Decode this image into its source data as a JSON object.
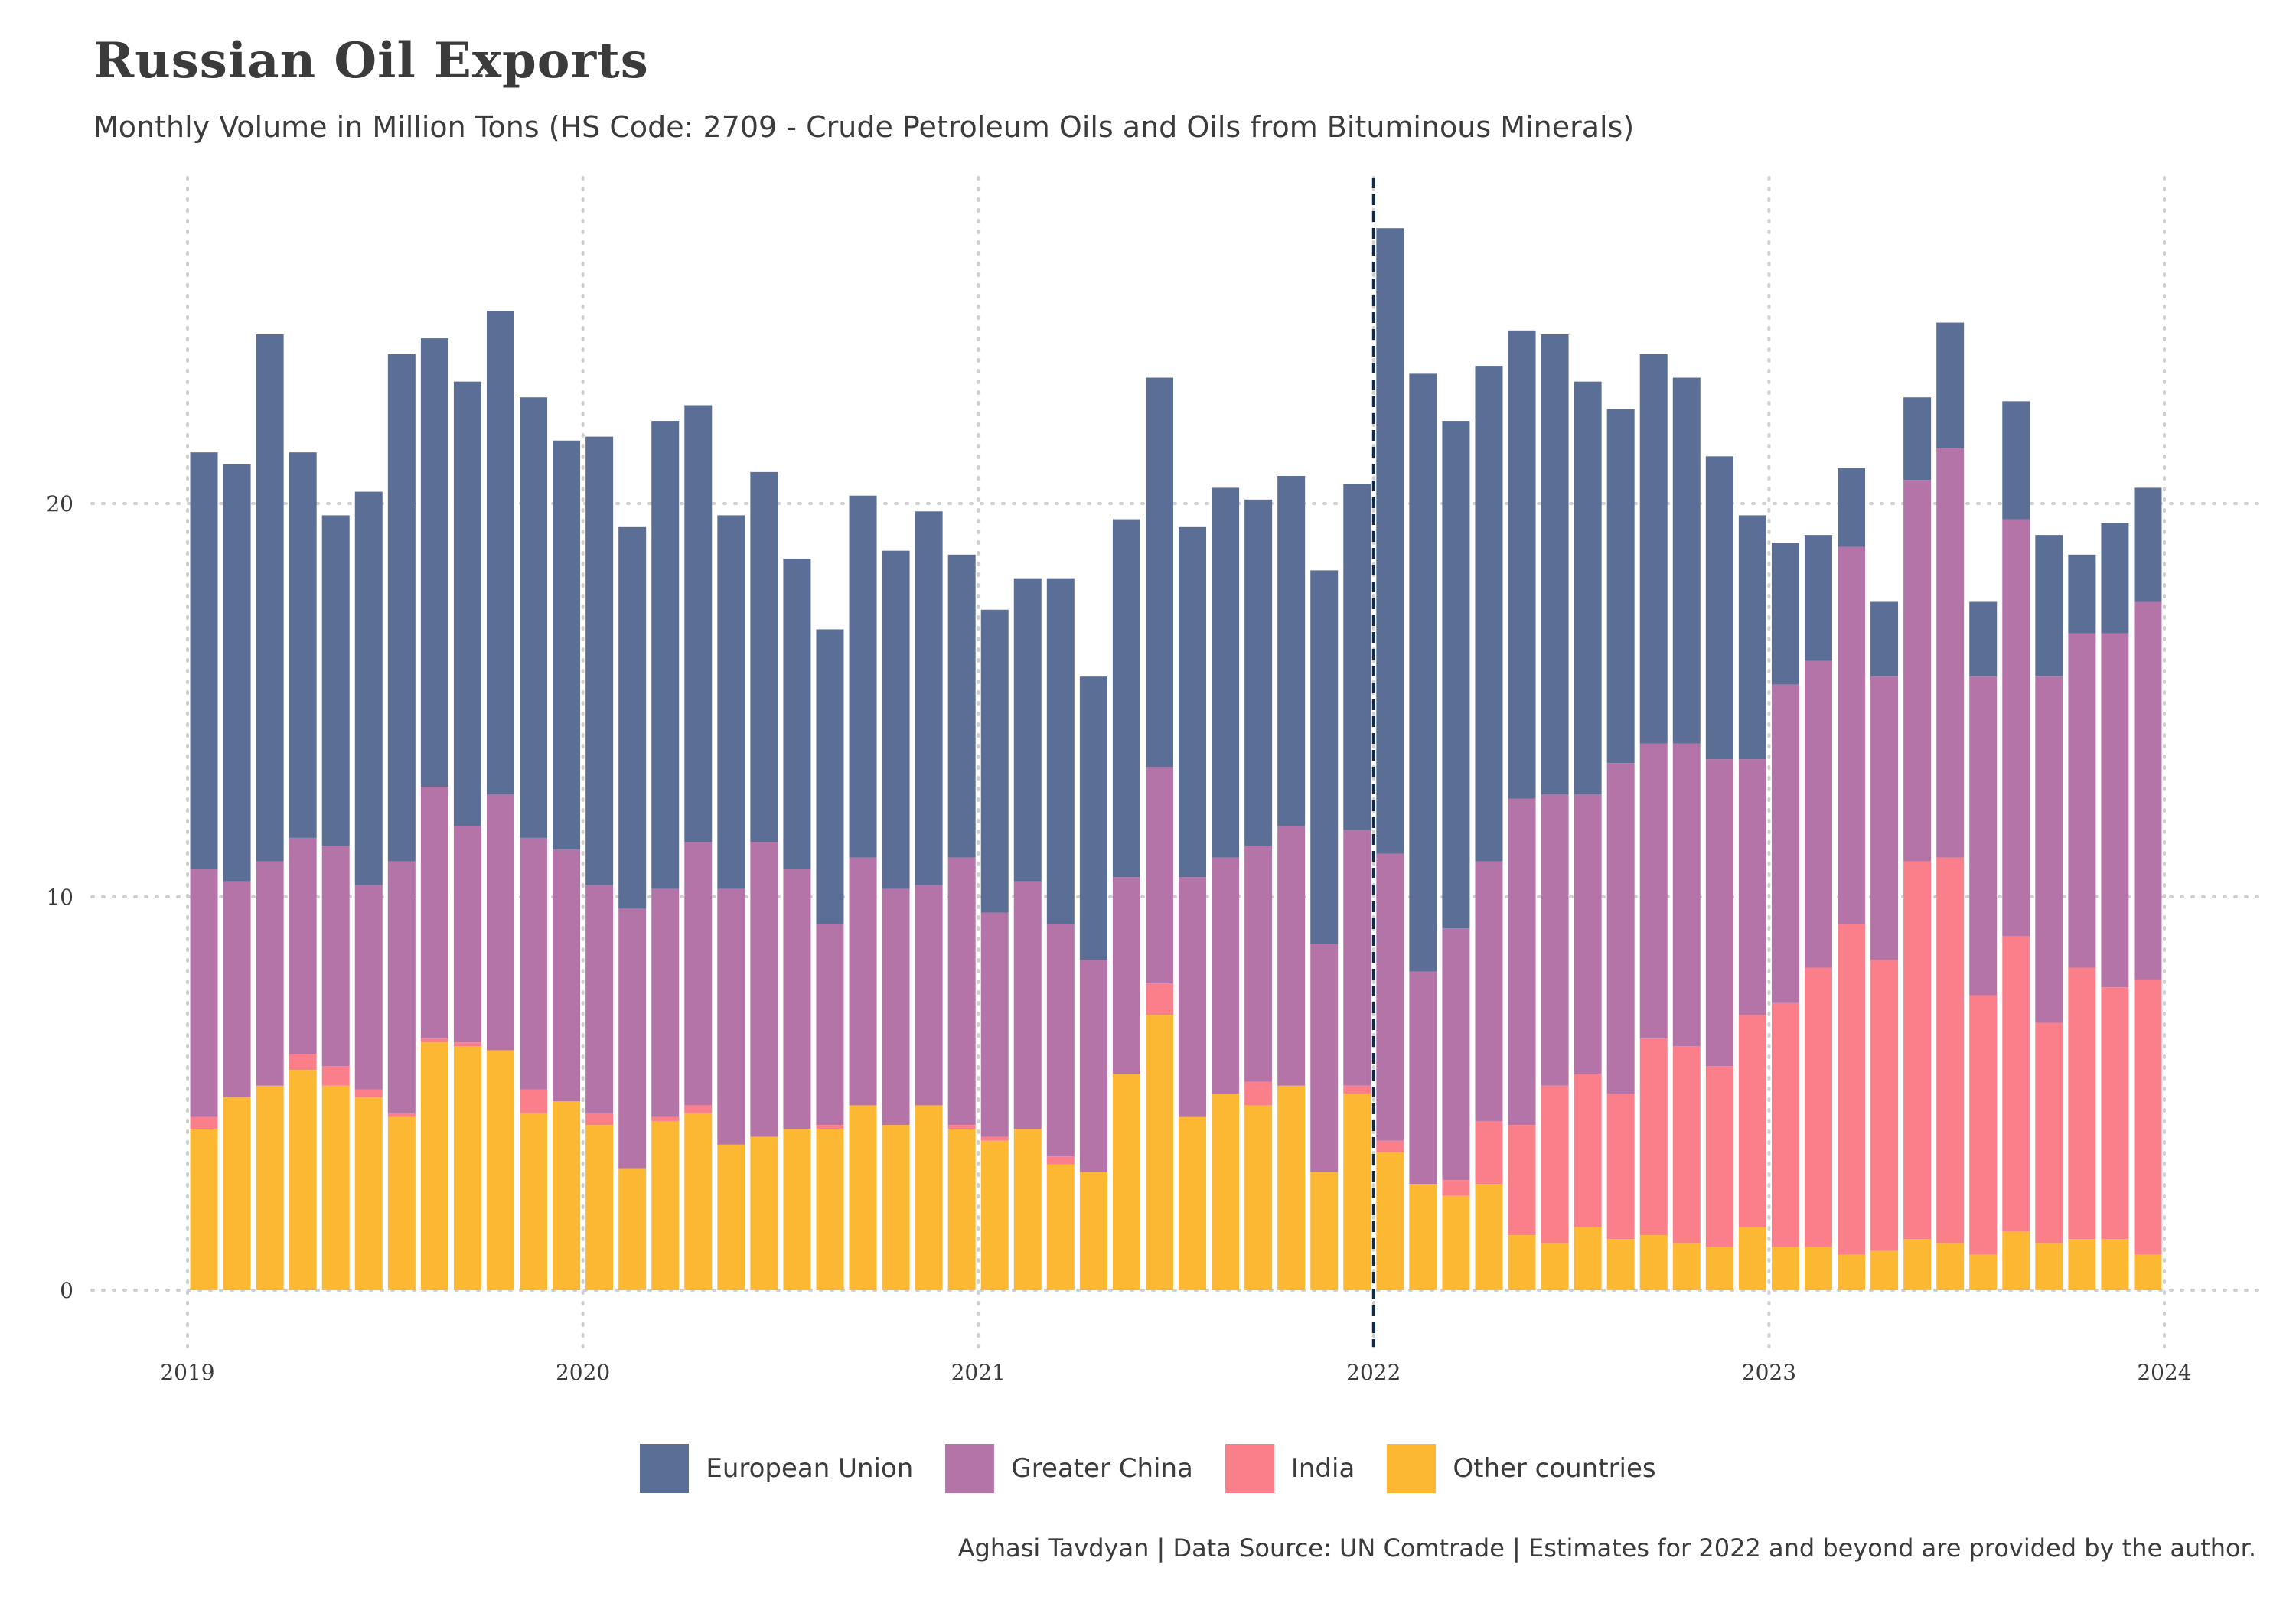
{
  "chart_data": {
    "type": "bar",
    "stacked": true,
    "title": "Russian Oil Exports",
    "subtitle": "Monthly Volume in Million Tons (HS Code: 2709 - Crude Petroleum Oils and Oils from Bituminous Minerals)",
    "caption": "Aghasi Tavdyan | Data Source: UN Comtrade | Estimates for 2022 and beyond are provided by the author.",
    "xlabel": "",
    "ylabel": "",
    "x_start": "2019-01",
    "x_ticks": [
      "2019",
      "2020",
      "2021",
      "2022",
      "2023",
      "2024"
    ],
    "y_ticks": [
      "0",
      "10",
      "20"
    ],
    "ylim": [
      0,
      28
    ],
    "reference_line": "2022",
    "legend_position": "bottom",
    "series": [
      {
        "name": "Other countries",
        "color": "#FDB833",
        "values": [
          4.1,
          4.9,
          5.2,
          5.6,
          5.2,
          4.9,
          4.4,
          6.3,
          6.2,
          6.1,
          4.5,
          4.8,
          4.2,
          3.1,
          4.3,
          4.5,
          3.7,
          3.9,
          4.1,
          4.1,
          4.7,
          4.2,
          4.7,
          4.1,
          3.8,
          4.1,
          3.2,
          3.0,
          5.5,
          7.0,
          4.4,
          5.0,
          4.7,
          5.2,
          3.0,
          5.0,
          3.5,
          2.7,
          2.4,
          2.7,
          1.4,
          1.2,
          1.6,
          1.3,
          1.4,
          1.2,
          1.1,
          1.6,
          1.1,
          1.1,
          0.9,
          1.0,
          1.3,
          1.2,
          0.9,
          1.5,
          1.2,
          1.3,
          1.3,
          0.9
        ]
      },
      {
        "name": "India",
        "color": "#FB7F8B",
        "values": [
          0.3,
          0.0,
          0.0,
          0.4,
          0.5,
          0.2,
          0.1,
          0.1,
          0.1,
          0.0,
          0.6,
          0.0,
          0.3,
          0.0,
          0.1,
          0.2,
          0.0,
          0.0,
          0.0,
          0.1,
          0.0,
          0.0,
          0.0,
          0.1,
          0.1,
          0.0,
          0.2,
          0.0,
          0.0,
          0.8,
          0.0,
          0.0,
          0.6,
          0.0,
          0.0,
          0.2,
          0.3,
          0.0,
          0.4,
          1.6,
          2.8,
          4.0,
          3.9,
          3.7,
          5.0,
          5.0,
          4.6,
          5.4,
          6.2,
          7.1,
          8.4,
          7.4,
          9.6,
          9.8,
          6.6,
          7.5,
          5.6,
          6.9,
          6.4,
          7.0
        ]
      },
      {
        "name": "Greater China",
        "color": "#B574A8",
        "values": [
          6.3,
          5.5,
          5.7,
          5.5,
          5.6,
          5.2,
          6.4,
          6.4,
          5.5,
          6.5,
          6.4,
          6.4,
          5.8,
          6.6,
          5.8,
          6.7,
          6.5,
          7.5,
          6.6,
          5.1,
          6.3,
          6.0,
          5.6,
          6.8,
          5.7,
          6.3,
          5.9,
          5.4,
          5.0,
          5.5,
          6.1,
          6.0,
          6.0,
          6.6,
          5.8,
          6.5,
          7.3,
          5.4,
          6.4,
          6.6,
          8.3,
          7.4,
          7.1,
          8.4,
          7.5,
          7.7,
          7.8,
          6.5,
          8.1,
          7.8,
          9.6,
          7.2,
          9.7,
          10.4,
          8.1,
          10.6,
          8.8,
          8.5,
          9.0,
          9.6
        ]
      },
      {
        "name": "European Union",
        "color": "#5B6F96",
        "values": [
          10.6,
          10.6,
          13.4,
          9.8,
          8.4,
          10.0,
          12.9,
          11.4,
          11.3,
          12.3,
          11.2,
          10.4,
          11.4,
          9.7,
          11.9,
          11.1,
          9.5,
          9.4,
          7.9,
          7.5,
          9.2,
          8.6,
          9.5,
          7.7,
          7.7,
          7.7,
          8.8,
          7.2,
          9.1,
          9.9,
          8.9,
          9.4,
          8.8,
          8.9,
          9.5,
          8.8,
          15.9,
          15.2,
          12.9,
          12.6,
          11.9,
          11.7,
          10.5,
          9.0,
          9.9,
          9.3,
          7.7,
          6.2,
          3.6,
          3.2,
          2.0,
          1.9,
          2.1,
          3.2,
          1.9,
          3.0,
          3.6,
          2.0,
          2.8,
          2.9
        ]
      }
    ],
    "legend_order": [
      "European Union",
      "Greater China",
      "India",
      "Other countries"
    ]
  }
}
